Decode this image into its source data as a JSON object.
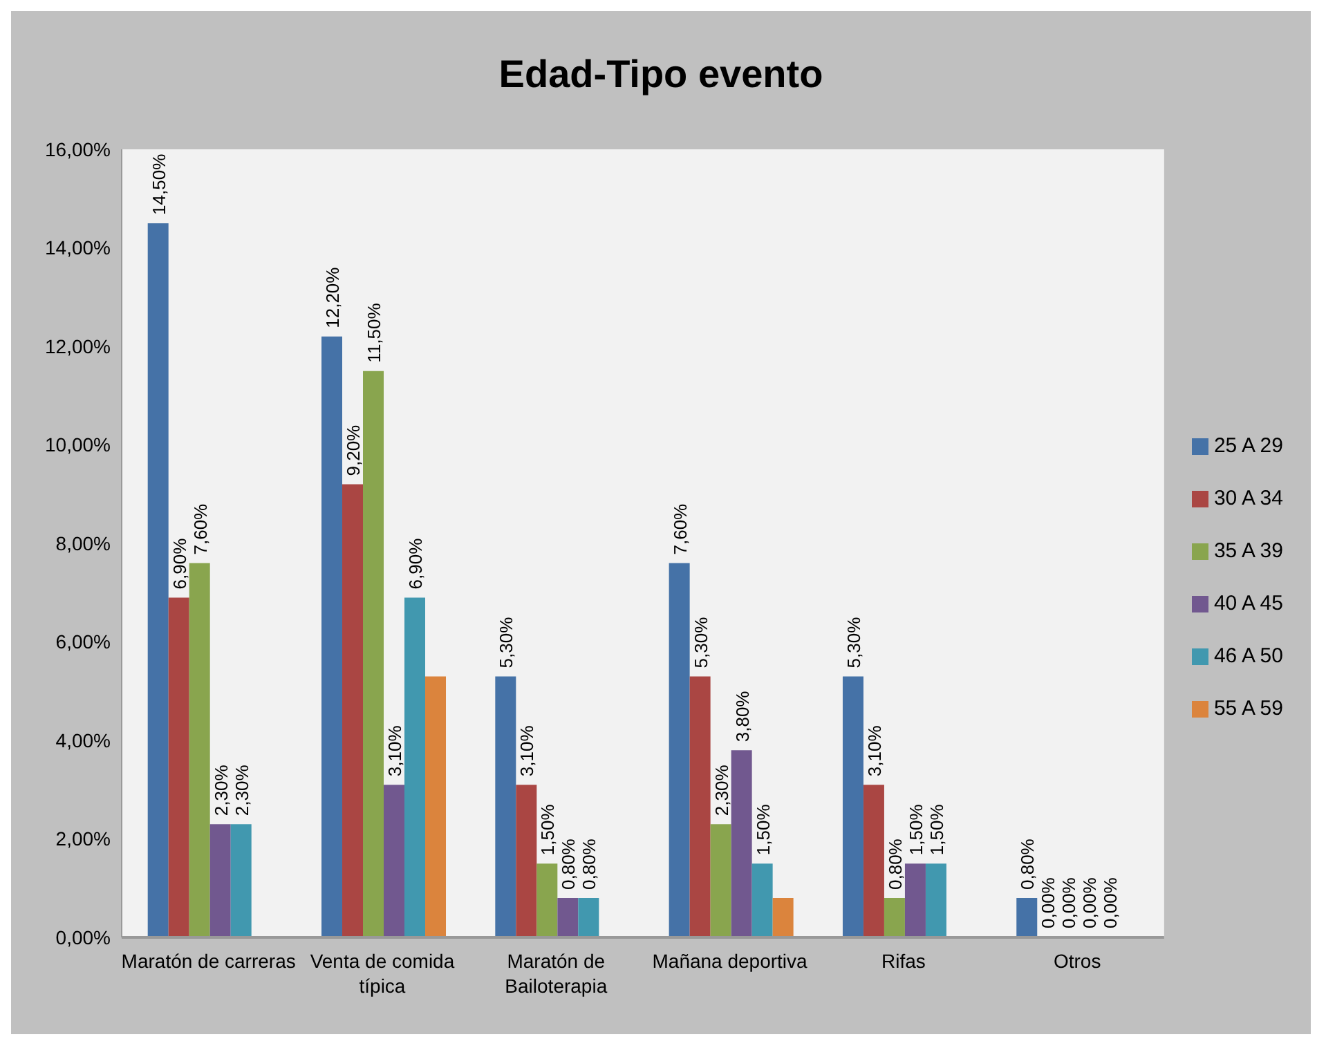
{
  "chart_data": {
    "type": "bar",
    "title": "Edad-Tipo evento",
    "categories": [
      "Maratón de carreras",
      "Venta de comida típica",
      "Maratón de Bailoterapia",
      "Mañana deportiva",
      "Rifas",
      "Otros"
    ],
    "series": [
      {
        "name": "25 A 29",
        "color": "#4572a7",
        "values": [
          14.5,
          12.2,
          5.3,
          7.6,
          5.3,
          0.8
        ],
        "value_labels": [
          "14,50%",
          "12,20%",
          "5,30%",
          "7,60%",
          "5,30%",
          "0,80%"
        ]
      },
      {
        "name": "30 A 34",
        "color": "#aa4643",
        "values": [
          6.9,
          9.2,
          3.1,
          5.3,
          3.1,
          0
        ],
        "value_labels": [
          "6,90%",
          "9,20%",
          "3,10%",
          "5,30%",
          "3,10%",
          "0,00%"
        ]
      },
      {
        "name": "35 A 39",
        "color": "#89a54e",
        "values": [
          7.6,
          11.5,
          1.5,
          2.3,
          0.8,
          0
        ],
        "value_labels": [
          "7,60%",
          "11,50%",
          "1,50%",
          "2,30%",
          "0,80%",
          "0,00%"
        ]
      },
      {
        "name": "40 A 45",
        "color": "#71588f",
        "values": [
          2.3,
          3.1,
          0.8,
          3.8,
          1.5,
          0
        ],
        "value_labels": [
          "2,30%",
          "3,10%",
          "0,80%",
          "3,80%",
          "1,50%",
          "0,00%"
        ]
      },
      {
        "name": "46 A 50",
        "color": "#4198af",
        "values": [
          2.3,
          6.9,
          0.8,
          1.5,
          1.5,
          0
        ],
        "value_labels": [
          "2,30%",
          "6,90%",
          "0,80%",
          "1,50%",
          "1,50%",
          "0,00%"
        ]
      },
      {
        "name": "55 A 59",
        "color": "#db843d",
        "values": [
          null,
          5.3,
          null,
          0.8,
          null,
          null
        ],
        "value_labels": [
          null,
          null,
          null,
          null,
          null,
          null
        ]
      }
    ],
    "ylim": [
      0,
      16
    ],
    "yticks": [
      {
        "value": 0,
        "label": "0,00%"
      },
      {
        "value": 2,
        "label": "2,00%"
      },
      {
        "value": 4,
        "label": "4,00%"
      },
      {
        "value": 6,
        "label": "6,00%"
      },
      {
        "value": 8,
        "label": "8,00%"
      },
      {
        "value": 10,
        "label": "10,00%"
      },
      {
        "value": 12,
        "label": "12,00%"
      },
      {
        "value": 14,
        "label": "14,00%"
      },
      {
        "value": 16,
        "label": "16,00%"
      }
    ],
    "legend": "right"
  }
}
